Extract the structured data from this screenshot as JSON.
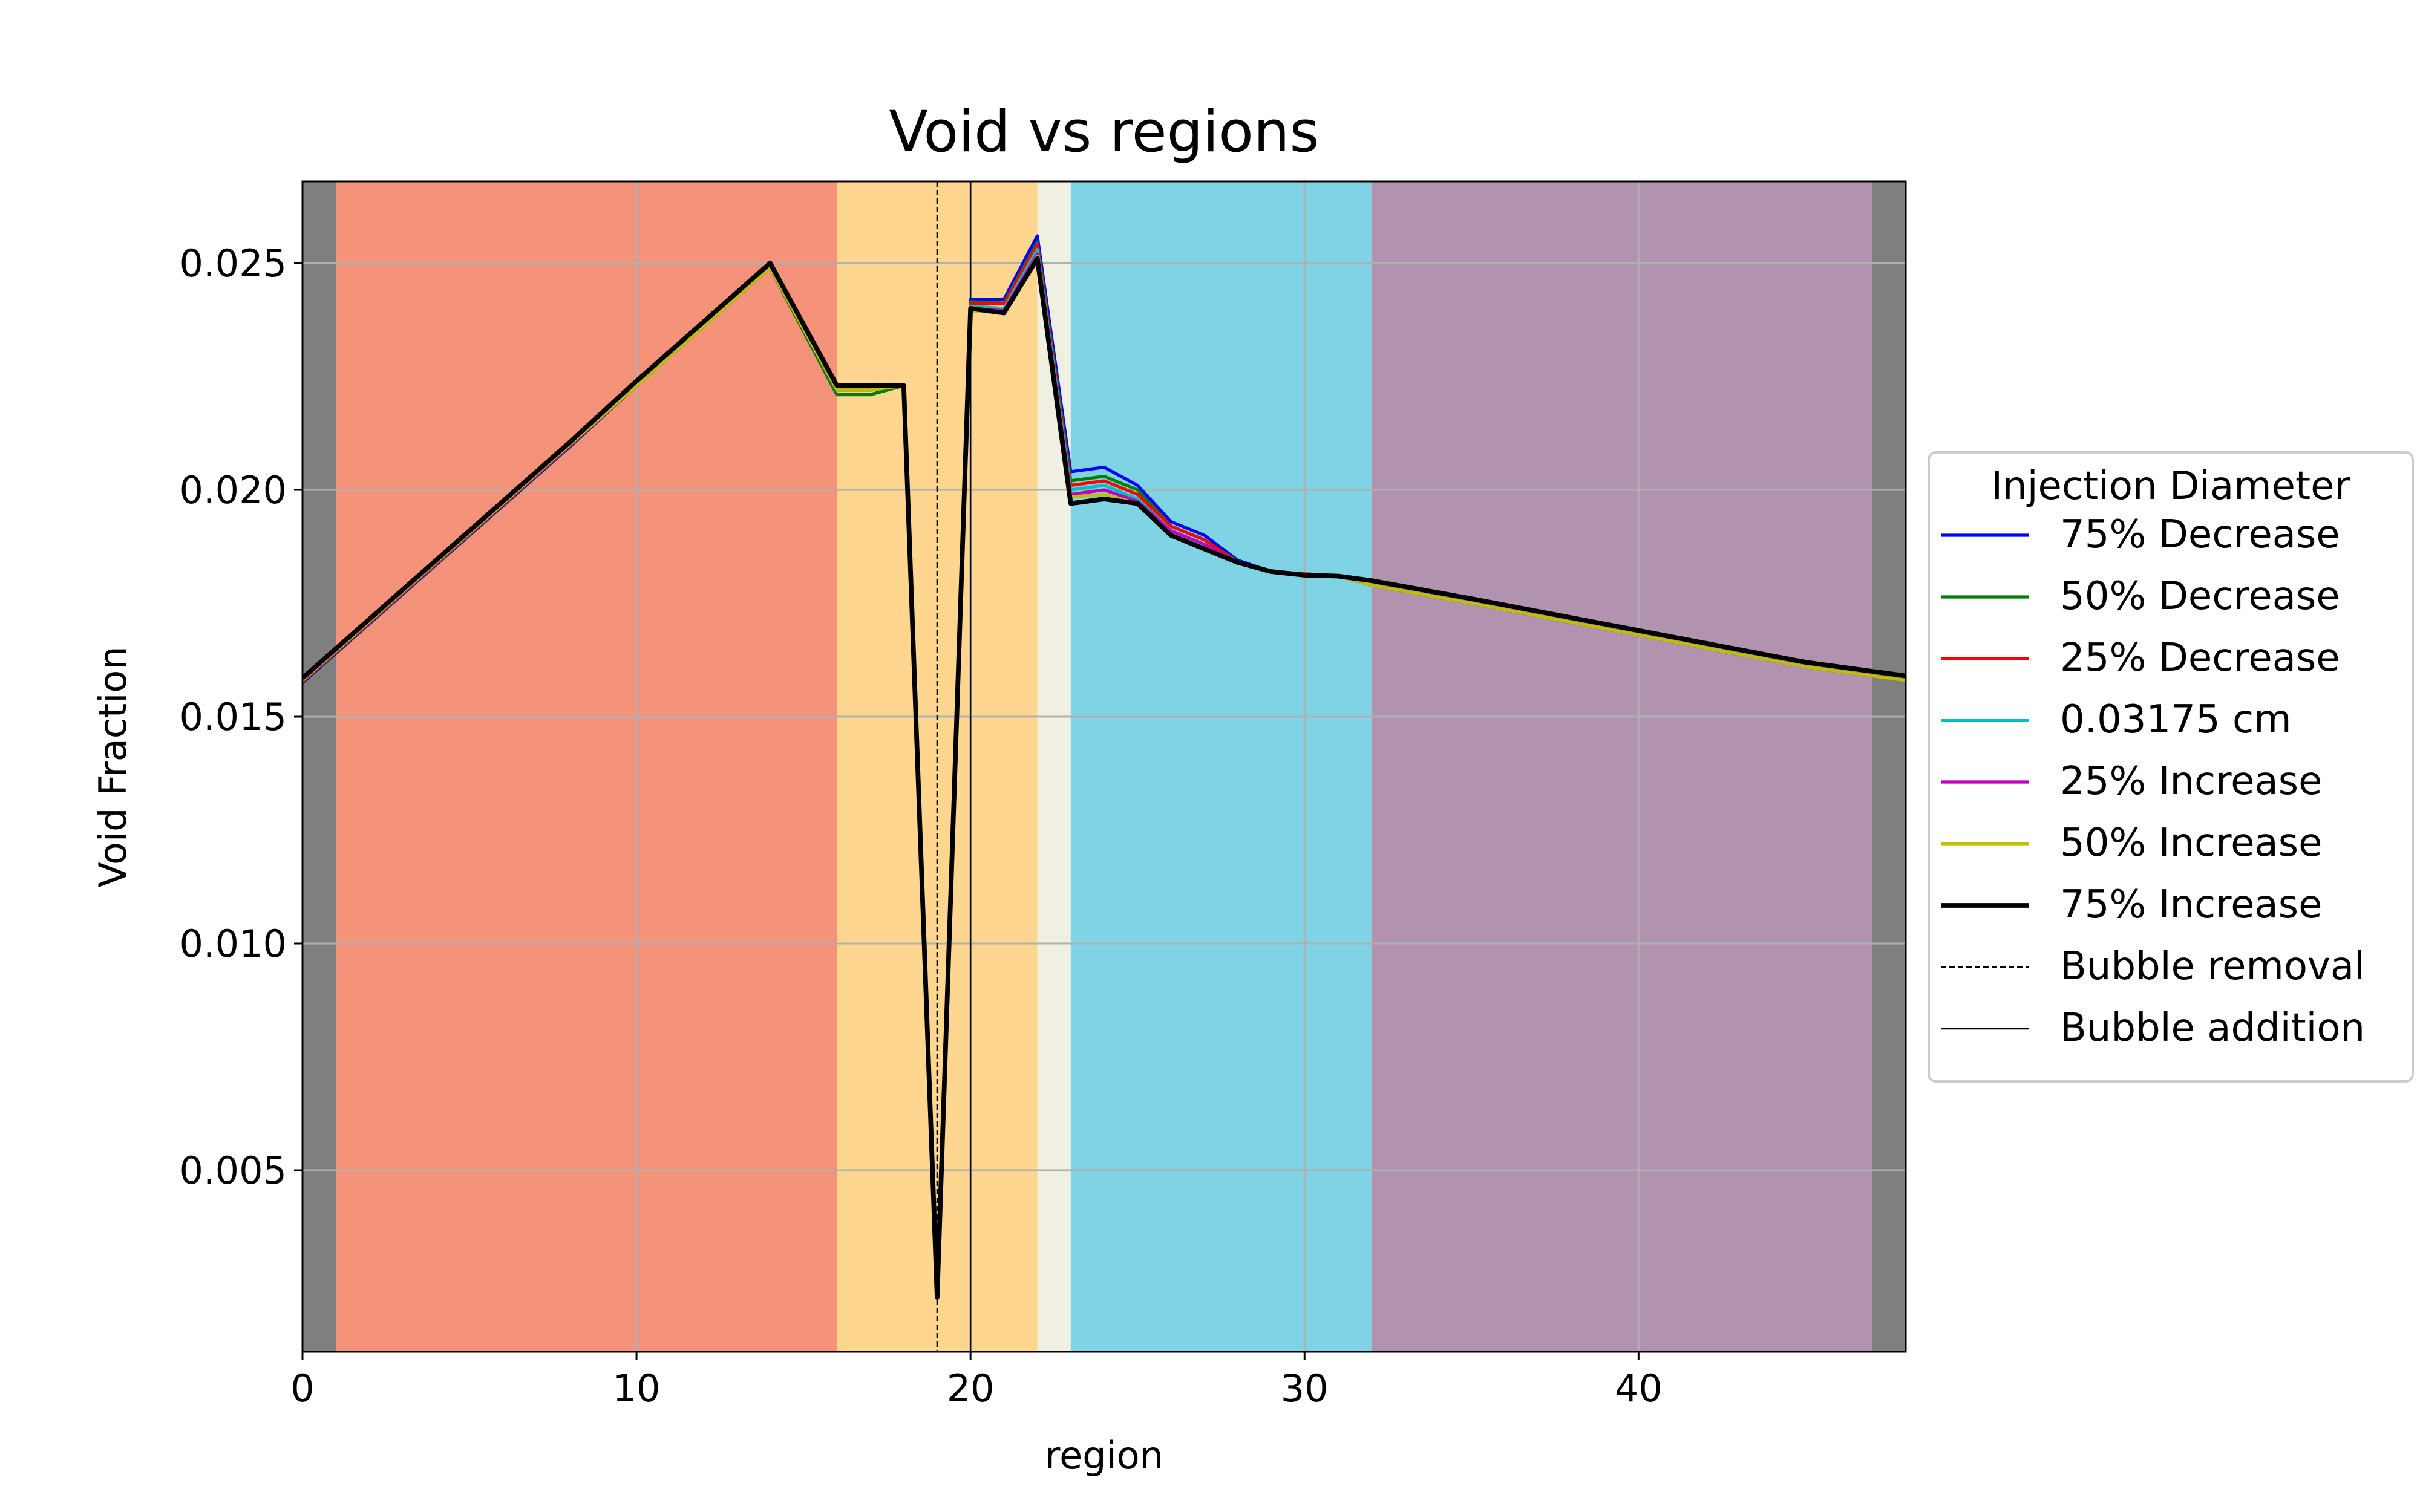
{
  "chart_data": {
    "type": "line",
    "title": "Void vs regions",
    "xlabel": "region",
    "ylabel": "Void Fraction",
    "xlim": [
      0,
      48
    ],
    "ylim": [
      0.001,
      0.0268
    ],
    "xticks": [
      0,
      10,
      20,
      30,
      40
    ],
    "yticks": [
      0.005,
      0.01,
      0.015,
      0.02,
      0.025
    ],
    "xtick_labels": [
      "0",
      "10",
      "20",
      "30",
      "40"
    ],
    "ytick_labels": [
      "0.005",
      "0.010",
      "0.015",
      "0.020",
      "0.025"
    ],
    "grid": true,
    "legend": {
      "title": "Injection Diameter",
      "placement": "outside-right"
    },
    "background_bands": [
      {
        "x0": 0,
        "x1": 1,
        "color": "#7f7f7f"
      },
      {
        "x0": 1,
        "x1": 16,
        "color": "#f4937a"
      },
      {
        "x0": 16,
        "x1": 22,
        "color": "#fed68f"
      },
      {
        "x0": 22,
        "x1": 23,
        "color": "#efefe2"
      },
      {
        "x0": 23,
        "x1": 32,
        "color": "#80d3e4"
      },
      {
        "x0": 32,
        "x1": 47,
        "color": "#b293af"
      },
      {
        "x0": 47,
        "x1": 48,
        "color": "#7f7f7f"
      }
    ],
    "vlines": [
      {
        "name": "Bubble removal",
        "x": 19,
        "style": "dashed",
        "color": "#000000"
      },
      {
        "name": "Bubble addition",
        "x": 20,
        "style": "solid",
        "color": "#000000"
      }
    ],
    "x": [
      0,
      2,
      4,
      6,
      8,
      10,
      12,
      14,
      16,
      17,
      18,
      19,
      20,
      21,
      22,
      23,
      24,
      25,
      26,
      27,
      28,
      29,
      30,
      31,
      32,
      35,
      40,
      45,
      48
    ],
    "series": [
      {
        "name": "75% Decrease",
        "color": "#0000ff",
        "width": 2,
        "values": [
          0.01575,
          0.01705,
          0.01835,
          0.01965,
          0.02095,
          0.0223,
          0.0236,
          0.0249,
          0.0221,
          0.0221,
          0.0223,
          0.0023,
          0.0242,
          0.0242,
          0.0256,
          0.0204,
          0.0205,
          0.0201,
          0.0193,
          0.019,
          0.01845,
          0.0182,
          0.01815,
          0.0181,
          0.0179,
          0.0175,
          0.0168,
          0.0161,
          0.0158
        ]
      },
      {
        "name": "50% Decrease",
        "color": "#008000",
        "width": 2,
        "values": [
          0.01577,
          0.01707,
          0.01837,
          0.01967,
          0.02097,
          0.0223,
          0.0236,
          0.0249,
          0.0221,
          0.0221,
          0.0223,
          0.0023,
          0.02415,
          0.02412,
          0.02545,
          0.0202,
          0.0203,
          0.02,
          0.0192,
          0.0189,
          0.01842,
          0.0182,
          0.01815,
          0.0181,
          0.0179,
          0.0175,
          0.0168,
          0.0161,
          0.0158
        ]
      },
      {
        "name": "25% Decrease",
        "color": "#ff0000",
        "width": 2,
        "values": [
          0.01578,
          0.01708,
          0.01838,
          0.01968,
          0.02098,
          0.0223,
          0.0236,
          0.0249,
          0.0222,
          0.0222,
          0.0223,
          0.0023,
          0.0241,
          0.0241,
          0.0254,
          0.0201,
          0.0202,
          0.0199,
          0.0192,
          0.0189,
          0.0184,
          0.0182,
          0.01815,
          0.0181,
          0.0179,
          0.0175,
          0.0168,
          0.0161,
          0.0158
        ]
      },
      {
        "name": "0.03175 cm",
        "color": "#00bfbf",
        "width": 2,
        "values": [
          0.0158,
          0.0171,
          0.0184,
          0.0197,
          0.021,
          0.0223,
          0.0236,
          0.0249,
          0.0222,
          0.0222,
          0.0223,
          0.0023,
          0.02405,
          0.024,
          0.0253,
          0.02,
          0.0201,
          0.0198,
          0.0191,
          0.0188,
          0.0184,
          0.0182,
          0.01812,
          0.0181,
          0.0179,
          0.0175,
          0.0168,
          0.0161,
          0.0158
        ]
      },
      {
        "name": "25% Increase",
        "color": "#bf00bf",
        "width": 2,
        "values": [
          0.0158,
          0.0171,
          0.0184,
          0.0197,
          0.021,
          0.0223,
          0.0236,
          0.0249,
          0.0222,
          0.0222,
          0.0223,
          0.0023,
          0.024,
          0.02395,
          0.0252,
          0.0199,
          0.02,
          0.01975,
          0.0191,
          0.0188,
          0.0184,
          0.0182,
          0.01812,
          0.0181,
          0.0179,
          0.0175,
          0.0168,
          0.0161,
          0.0158
        ]
      },
      {
        "name": "50% Increase",
        "color": "#bfbf00",
        "width": 2,
        "values": [
          0.0158,
          0.0171,
          0.0184,
          0.0197,
          0.021,
          0.0223,
          0.0236,
          0.0249,
          0.0222,
          0.0222,
          0.0223,
          0.0023,
          0.02395,
          0.0239,
          0.02515,
          0.01985,
          0.0199,
          0.0197,
          0.019,
          0.0187,
          0.0184,
          0.0182,
          0.01812,
          0.0181,
          0.0179,
          0.0175,
          0.0168,
          0.0161,
          0.0158
        ]
      },
      {
        "name": "75% Increase",
        "color": "#000000",
        "width": 3,
        "values": [
          0.01585,
          0.01715,
          0.01845,
          0.01975,
          0.02105,
          0.0224,
          0.0237,
          0.025,
          0.0223,
          0.0223,
          0.0223,
          0.0022,
          0.024,
          0.0239,
          0.0251,
          0.0197,
          0.0198,
          0.0197,
          0.019,
          0.0187,
          0.0184,
          0.0182,
          0.01812,
          0.0181,
          0.018,
          0.0176,
          0.0169,
          0.0162,
          0.0159
        ]
      }
    ]
  }
}
